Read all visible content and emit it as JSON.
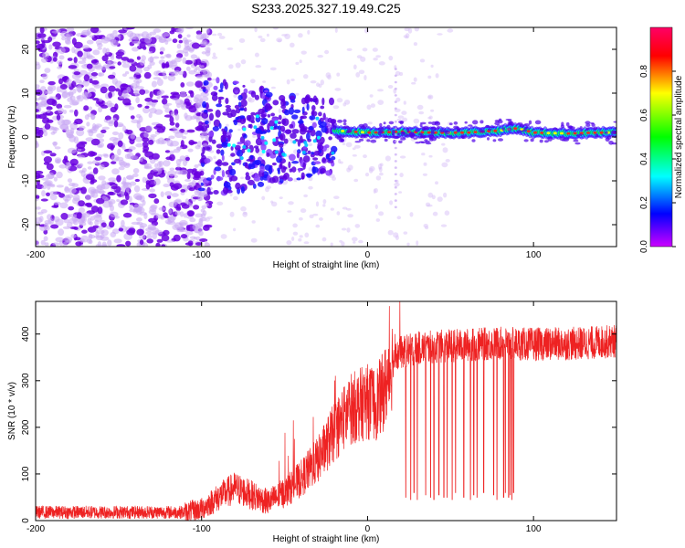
{
  "figure_title": "S233.2025.327.19.49.C25",
  "colors": {
    "snr_line": "#ee2222",
    "cb_violet": "#cc00ff",
    "cb_blue": "#0000ff",
    "cb_cyan": "#00ffff",
    "cb_green": "#00ff00",
    "cb_yellow": "#ffff00",
    "cb_red": "#ff0000",
    "cb_magenta": "#ff0066"
  },
  "chart_data": [
    {
      "type": "heatmap",
      "title": "S233.2025.327.19.49.C25",
      "xlabel": "Height of straight line (km)",
      "ylabel": "Frequency (Hz)",
      "xlim": [
        -200,
        150
      ],
      "ylim": [
        -25,
        25
      ],
      "x_ticks": [
        -200,
        -100,
        0,
        100
      ],
      "x_tick_labels": [
        "-200",
        "-100",
        "0",
        "100"
      ],
      "y_ticks": [
        -20,
        -10,
        0,
        10,
        20
      ],
      "y_tick_labels": [
        "-20",
        "-10",
        "0",
        "10",
        "20"
      ],
      "colorbar": {
        "label": "Normalized spectral amplitude",
        "range": [
          0,
          1
        ],
        "ticks": [
          0,
          0.2,
          0.4,
          0.6,
          0.8
        ],
        "tick_labels": [
          "0.0",
          "0.2",
          "0.4",
          "0.6",
          "0.8"
        ]
      },
      "features": {
        "noise_region_x": [
          -200,
          -95
        ],
        "transition_region_x": [
          -100,
          -20
        ],
        "signal_line_x": [
          -20,
          150
        ],
        "signal_frequency_hz": [
          [
            -20,
            1.5
          ],
          [
            0,
            1.0
          ],
          [
            20,
            1.2
          ],
          [
            40,
            1.0
          ],
          [
            60,
            1.0
          ],
          [
            80,
            1.5
          ],
          [
            90,
            2.0
          ],
          [
            100,
            1.0
          ],
          [
            120,
            0.8
          ],
          [
            140,
            1.0
          ],
          [
            150,
            1.0
          ]
        ],
        "vertical_artifact_x": 17
      }
    },
    {
      "type": "line",
      "xlabel": "Height of straight line (km)",
      "ylabel": "SNR (10 * v/v)",
      "xlim": [
        -200,
        150
      ],
      "ylim": [
        0,
        470
      ],
      "x_ticks": [
        -200,
        -100,
        0,
        100
      ],
      "x_tick_labels": [
        "-200",
        "-100",
        "0",
        "100"
      ],
      "y_ticks": [
        0,
        100,
        200,
        300,
        400
      ],
      "y_tick_labels": [
        "0",
        "100",
        "200",
        "300",
        "400"
      ],
      "series": [
        {
          "name": "SNR",
          "trend": [
            [
              -200,
              18
            ],
            [
              -110,
              18
            ],
            [
              -100,
              25
            ],
            [
              -90,
              50
            ],
            [
              -80,
              70
            ],
            [
              -70,
              55
            ],
            [
              -60,
              40
            ],
            [
              -50,
              60
            ],
            [
              -40,
              90
            ],
            [
              -30,
              130
            ],
            [
              -20,
              190
            ],
            [
              -10,
              240
            ],
            [
              0,
              255
            ],
            [
              5,
              250
            ],
            [
              10,
              280
            ],
            [
              15,
              340
            ],
            [
              20,
              360
            ],
            [
              30,
              370
            ],
            [
              50,
              375
            ],
            [
              80,
              380
            ],
            [
              100,
              378
            ],
            [
              130,
              380
            ],
            [
              150,
              385
            ]
          ],
          "dropouts": [
            [
              23,
              50
            ],
            [
              26,
              45
            ],
            [
              28,
              60
            ],
            [
              30,
              45
            ],
            [
              35,
              55
            ],
            [
              38,
              50
            ],
            [
              40,
              45
            ],
            [
              43,
              55
            ],
            [
              46,
              50
            ],
            [
              48,
              50
            ],
            [
              51,
              45
            ],
            [
              53,
              60
            ],
            [
              58,
              50
            ],
            [
              62,
              45
            ],
            [
              64,
              55
            ],
            [
              66,
              50
            ],
            [
              70,
              60
            ],
            [
              76,
              55
            ],
            [
              78,
              45
            ],
            [
              82,
              50
            ],
            [
              83,
              60
            ],
            [
              85,
              50
            ],
            [
              86,
              55
            ],
            [
              87,
              45
            ],
            [
              88,
              60
            ]
          ]
        }
      ]
    }
  ]
}
